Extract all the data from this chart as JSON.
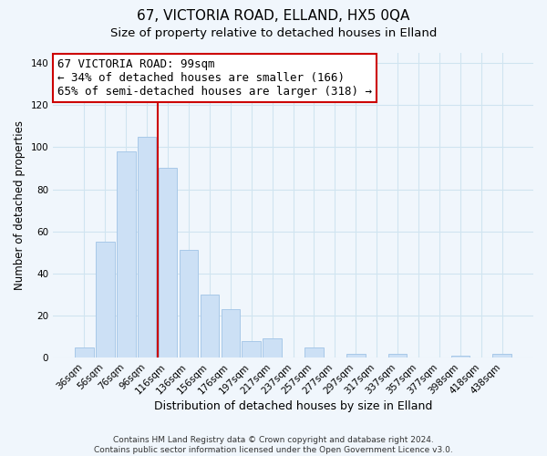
{
  "title": "67, VICTORIA ROAD, ELLAND, HX5 0QA",
  "subtitle": "Size of property relative to detached houses in Elland",
  "xlabel": "Distribution of detached houses by size in Elland",
  "ylabel": "Number of detached properties",
  "bar_labels": [
    "36sqm",
    "56sqm",
    "76sqm",
    "96sqm",
    "116sqm",
    "136sqm",
    "156sqm",
    "176sqm",
    "197sqm",
    "217sqm",
    "237sqm",
    "257sqm",
    "277sqm",
    "297sqm",
    "317sqm",
    "337sqm",
    "357sqm",
    "377sqm",
    "398sqm",
    "418sqm",
    "438sqm"
  ],
  "bar_values": [
    5,
    55,
    98,
    105,
    90,
    51,
    30,
    23,
    8,
    9,
    0,
    5,
    0,
    2,
    0,
    2,
    0,
    0,
    1,
    0,
    2
  ],
  "bar_color": "#cce0f5",
  "bar_edge_color": "#a8c8e8",
  "vline_x": 3.5,
  "vline_color": "#cc0000",
  "annotation_line1": "67 VICTORIA ROAD: 99sqm",
  "annotation_line2": "← 34% of detached houses are smaller (166)",
  "annotation_line3": "65% of semi-detached houses are larger (318) →",
  "annotation_box_color": "white",
  "annotation_box_edge_color": "#cc0000",
  "ylim": [
    0,
    145
  ],
  "yticks": [
    0,
    20,
    40,
    60,
    80,
    100,
    120,
    140
  ],
  "footer_line1": "Contains HM Land Registry data © Crown copyright and database right 2024.",
  "footer_line2": "Contains public sector information licensed under the Open Government Licence v3.0.",
  "title_fontsize": 11,
  "subtitle_fontsize": 9.5,
  "ylabel_fontsize": 8.5,
  "xlabel_fontsize": 9,
  "tick_fontsize": 7.5,
  "annotation_fontsize": 9,
  "footer_fontsize": 6.5,
  "grid_color": "#d0e4f0",
  "background_color": "#f0f6fc"
}
